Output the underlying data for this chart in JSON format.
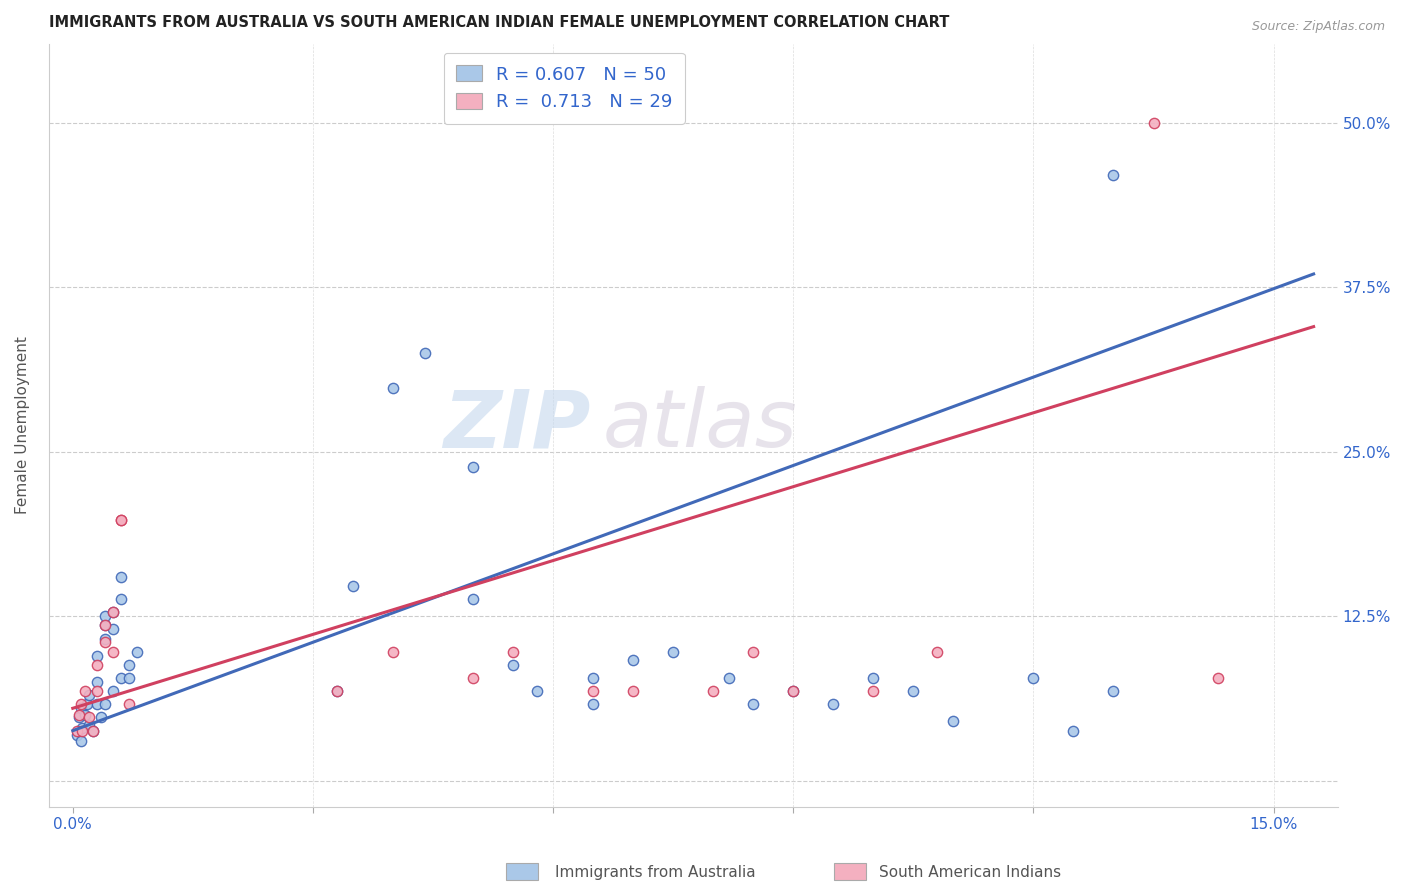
{
  "title": "IMMIGRANTS FROM AUSTRALIA VS SOUTH AMERICAN INDIAN FEMALE UNEMPLOYMENT CORRELATION CHART",
  "source": "Source: ZipAtlas.com",
  "ylabel": "Female Unemployment",
  "x_ticks": [
    0.0,
    0.03,
    0.06,
    0.09,
    0.12,
    0.15
  ],
  "x_tick_labels": [
    "0.0%",
    "",
    "",
    "",
    "",
    "15.0%"
  ],
  "y_ticks": [
    0.0,
    0.125,
    0.25,
    0.375,
    0.5
  ],
  "y_tick_labels": [
    "",
    "12.5%",
    "25.0%",
    "37.5%",
    "50.0%"
  ],
  "xlim": [
    -0.003,
    0.158
  ],
  "ylim": [
    -0.02,
    0.56
  ],
  "blue_color": "#aac8e8",
  "blue_line_color": "#4169b8",
  "pink_color": "#f4b0c0",
  "pink_line_color": "#d04060",
  "R_blue": 0.607,
  "N_blue": 50,
  "R_pink": 0.713,
  "N_pink": 29,
  "legend_label_blue": "Immigrants from Australia",
  "legend_label_pink": "South American Indians",
  "watermark_zip": "ZIP",
  "watermark_atlas": "atlas",
  "blue_points": [
    [
      0.0005,
      0.035
    ],
    [
      0.0008,
      0.048
    ],
    [
      0.001,
      0.03
    ],
    [
      0.001,
      0.055
    ],
    [
      0.0012,
      0.04
    ],
    [
      0.0015,
      0.05
    ],
    [
      0.0018,
      0.058
    ],
    [
      0.002,
      0.065
    ],
    [
      0.002,
      0.042
    ],
    [
      0.0025,
      0.038
    ],
    [
      0.003,
      0.095
    ],
    [
      0.003,
      0.075
    ],
    [
      0.003,
      0.058
    ],
    [
      0.0035,
      0.048
    ],
    [
      0.004,
      0.058
    ],
    [
      0.004,
      0.118
    ],
    [
      0.004,
      0.125
    ],
    [
      0.004,
      0.108
    ],
    [
      0.005,
      0.128
    ],
    [
      0.005,
      0.115
    ],
    [
      0.005,
      0.068
    ],
    [
      0.006,
      0.155
    ],
    [
      0.006,
      0.138
    ],
    [
      0.006,
      0.078
    ],
    [
      0.007,
      0.088
    ],
    [
      0.007,
      0.078
    ],
    [
      0.008,
      0.098
    ],
    [
      0.033,
      0.068
    ],
    [
      0.035,
      0.148
    ],
    [
      0.04,
      0.298
    ],
    [
      0.044,
      0.325
    ],
    [
      0.05,
      0.238
    ],
    [
      0.05,
      0.138
    ],
    [
      0.055,
      0.088
    ],
    [
      0.058,
      0.068
    ],
    [
      0.065,
      0.078
    ],
    [
      0.065,
      0.058
    ],
    [
      0.07,
      0.092
    ],
    [
      0.075,
      0.098
    ],
    [
      0.082,
      0.078
    ],
    [
      0.085,
      0.058
    ],
    [
      0.09,
      0.068
    ],
    [
      0.095,
      0.058
    ],
    [
      0.1,
      0.078
    ],
    [
      0.105,
      0.068
    ],
    [
      0.11,
      0.045
    ],
    [
      0.12,
      0.078
    ],
    [
      0.125,
      0.038
    ],
    [
      0.13,
      0.46
    ],
    [
      0.13,
      0.068
    ]
  ],
  "pink_points": [
    [
      0.0005,
      0.038
    ],
    [
      0.0008,
      0.05
    ],
    [
      0.001,
      0.058
    ],
    [
      0.0012,
      0.038
    ],
    [
      0.0015,
      0.068
    ],
    [
      0.002,
      0.048
    ],
    [
      0.0025,
      0.038
    ],
    [
      0.003,
      0.088
    ],
    [
      0.003,
      0.068
    ],
    [
      0.004,
      0.118
    ],
    [
      0.004,
      0.105
    ],
    [
      0.005,
      0.128
    ],
    [
      0.005,
      0.098
    ],
    [
      0.006,
      0.198
    ],
    [
      0.006,
      0.198
    ],
    [
      0.007,
      0.058
    ],
    [
      0.033,
      0.068
    ],
    [
      0.04,
      0.098
    ],
    [
      0.05,
      0.078
    ],
    [
      0.055,
      0.098
    ],
    [
      0.065,
      0.068
    ],
    [
      0.07,
      0.068
    ],
    [
      0.08,
      0.068
    ],
    [
      0.085,
      0.098
    ],
    [
      0.09,
      0.068
    ],
    [
      0.1,
      0.068
    ],
    [
      0.108,
      0.098
    ],
    [
      0.135,
      0.5
    ],
    [
      0.143,
      0.078
    ]
  ],
  "blue_line_x": [
    0.0,
    0.155
  ],
  "blue_line_y": [
    0.038,
    0.385
  ],
  "pink_line_x": [
    0.0,
    0.155
  ],
  "pink_line_y": [
    0.055,
    0.345
  ]
}
